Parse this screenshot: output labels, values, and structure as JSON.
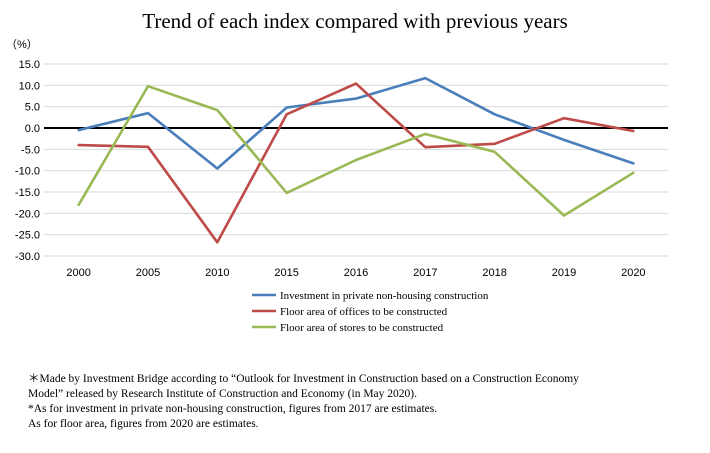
{
  "chart_data": {
    "type": "line",
    "title": "Trend of each index compared with previous years",
    "ylabel": "（%）",
    "xlabel": "",
    "categories": [
      "2000",
      "2005",
      "2010",
      "2015",
      "2016",
      "2017",
      "2018",
      "2019",
      "2020"
    ],
    "y_ticks": [
      "15.0",
      "10.0",
      "5.0",
      "0.0",
      "-5.0",
      "-10.0",
      "-15.0",
      "-20.0",
      "-25.0",
      "-30.0"
    ],
    "ylim": [
      -30,
      15
    ],
    "grid": true,
    "legend_position": "bottom",
    "series": [
      {
        "name": "Investment in private non-housing construction",
        "color": "#4a7ebb",
        "values": [
          -0.5,
          3.5,
          -9.5,
          4.8,
          6.9,
          11.7,
          3.2,
          -2.8,
          -8.3
        ]
      },
      {
        "name": "Floor area of offices to be constructed",
        "color": "#be4b48",
        "values": [
          -4.0,
          -4.4,
          -26.8,
          3.2,
          10.4,
          -4.5,
          -3.7,
          2.3,
          -0.7
        ]
      },
      {
        "name": "Floor area of stores to be constructed",
        "color": "#98b954",
        "values": [
          -18.0,
          9.8,
          4.2,
          -15.2,
          -7.5,
          -1.4,
          -5.6,
          -20.5,
          -10.5
        ]
      }
    ]
  },
  "notes": [
    "＊Made by Investment Bridge according to “Outlook for Investment in Construction based on a Construction Economy",
    "Model” released by Research Institute of Construction and Economy (in May 2020).",
    "*As for investment in private non-housing construction, figures from 2017 are estimates.",
    "As for floor area, figures from 2020 are estimates."
  ]
}
